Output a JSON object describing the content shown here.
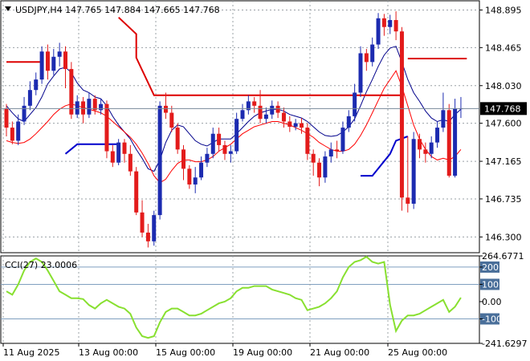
{
  "chart_data": {
    "type": "candlestick",
    "header": {
      "symbol": "USDJPY,H4",
      "open": "147.765",
      "high": "147.884",
      "low": "147.665",
      "close": "147.768"
    },
    "price_axis": {
      "ylim": [
        146.12,
        149.0
      ],
      "ticks": [
        "148.895",
        "148.465",
        "148.030",
        "147.600",
        "147.165",
        "146.735",
        "146.300"
      ],
      "current_label": "147.768",
      "current_value": 147.768
    },
    "x_labels": [
      "11 Aug 2025",
      "13 Aug 00:00",
      "15 Aug 00:00",
      "19 Aug 00:00",
      "21 Aug 00:00",
      "25 Aug 00:00"
    ],
    "candles": [
      [
        147.77,
        147.55,
        147.82,
        147.45
      ],
      [
        147.55,
        147.4,
        147.62,
        147.36
      ],
      [
        147.4,
        147.62,
        147.7,
        147.35
      ],
      [
        147.62,
        147.8,
        147.9,
        147.58
      ],
      [
        147.8,
        147.98,
        148.08,
        147.75
      ],
      [
        147.98,
        148.1,
        148.18,
        147.92
      ],
      [
        148.1,
        148.42,
        148.48,
        148.05
      ],
      [
        148.42,
        148.2,
        148.5,
        148.1
      ],
      [
        148.2,
        148.36,
        148.45,
        148.15
      ],
      [
        148.36,
        148.42,
        148.52,
        148.25
      ],
      [
        148.42,
        148.22,
        148.48,
        148.0
      ],
      [
        148.22,
        147.7,
        148.3,
        147.65
      ],
      [
        147.7,
        147.85,
        147.92,
        147.66
      ],
      [
        147.85,
        147.7,
        147.9,
        147.6
      ],
      [
        147.7,
        147.88,
        147.95,
        147.66
      ],
      [
        147.88,
        147.75,
        147.92,
        147.7
      ],
      [
        147.75,
        147.82,
        147.88,
        147.7
      ],
      [
        147.82,
        147.28,
        147.86,
        147.2
      ],
      [
        147.28,
        147.15,
        147.35,
        147.1
      ],
      [
        147.15,
        147.38,
        147.42,
        147.12
      ],
      [
        147.38,
        147.25,
        147.42,
        147.15
      ],
      [
        147.25,
        147.05,
        147.35,
        147.0
      ],
      [
        147.05,
        146.58,
        147.1,
        146.55
      ],
      [
        146.58,
        146.35,
        146.72,
        146.3
      ],
      [
        146.35,
        146.25,
        146.45,
        146.18
      ],
      [
        146.25,
        146.55,
        146.6,
        146.2
      ],
      [
        146.55,
        147.8,
        147.85,
        146.5
      ],
      [
        147.8,
        147.72,
        147.95,
        147.65
      ],
      [
        147.72,
        147.55,
        147.8,
        147.5
      ],
      [
        147.55,
        147.3,
        147.6,
        147.25
      ],
      [
        147.3,
        147.08,
        147.35,
        146.95
      ],
      [
        147.08,
        146.9,
        147.12,
        146.85
      ],
      [
        146.9,
        146.98,
        147.1,
        146.8
      ],
      [
        146.98,
        147.15,
        147.22,
        146.95
      ],
      [
        147.15,
        147.25,
        147.32,
        147.1
      ],
      [
        147.25,
        147.48,
        147.55,
        147.2
      ],
      [
        147.48,
        147.35,
        147.55,
        147.28
      ],
      [
        147.35,
        147.25,
        147.4,
        147.18
      ],
      [
        147.25,
        147.28,
        147.35,
        147.15
      ],
      [
        147.28,
        147.65,
        147.72,
        147.25
      ],
      [
        147.65,
        147.75,
        147.82,
        147.62
      ],
      [
        147.75,
        147.85,
        147.92,
        147.7
      ],
      [
        147.85,
        147.8,
        147.9,
        147.72
      ],
      [
        147.8,
        147.65,
        147.98,
        147.6
      ],
      [
        147.65,
        147.7,
        147.78,
        147.6
      ],
      [
        147.7,
        147.8,
        147.86,
        147.65
      ],
      [
        147.8,
        147.72,
        147.85,
        147.66
      ],
      [
        147.72,
        147.62,
        147.78,
        147.55
      ],
      [
        147.62,
        147.56,
        147.68,
        147.5
      ],
      [
        147.56,
        147.6,
        147.65,
        147.52
      ],
      [
        147.6,
        147.55,
        147.66,
        147.48
      ],
      [
        147.55,
        147.25,
        147.6,
        147.18
      ],
      [
        147.25,
        147.15,
        147.3,
        147.0
      ],
      [
        147.15,
        146.98,
        147.2,
        146.88
      ],
      [
        146.98,
        147.22,
        147.28,
        146.92
      ],
      [
        147.22,
        147.3,
        147.38,
        147.15
      ],
      [
        147.3,
        147.28,
        147.4,
        147.2
      ],
      [
        147.28,
        147.55,
        147.62,
        147.25
      ],
      [
        147.55,
        147.68,
        147.75,
        147.5
      ],
      [
        147.68,
        147.95,
        148.05,
        147.62
      ],
      [
        147.95,
        148.4,
        148.48,
        147.9
      ],
      [
        148.4,
        148.3,
        148.45,
        148.2
      ],
      [
        148.3,
        148.5,
        148.58,
        148.25
      ],
      [
        148.5,
        148.8,
        148.86,
        148.45
      ],
      [
        148.8,
        148.7,
        148.85,
        148.6
      ],
      [
        148.7,
        148.78,
        148.84,
        148.62
      ],
      [
        148.78,
        148.65,
        148.88,
        148.55
      ],
      [
        148.65,
        146.75,
        148.7,
        146.6
      ],
      [
        146.75,
        146.68,
        147.45,
        146.58
      ],
      [
        146.68,
        147.42,
        147.5,
        146.62
      ],
      [
        147.42,
        147.3,
        147.48,
        147.2
      ],
      [
        147.3,
        147.25,
        147.38,
        147.15
      ],
      [
        147.25,
        147.38,
        147.45,
        147.2
      ],
      [
        147.38,
        147.55,
        147.62,
        147.32
      ],
      [
        147.55,
        147.75,
        147.95,
        147.5
      ],
      [
        147.75,
        147.0,
        147.82,
        146.98
      ],
      [
        147.0,
        147.77,
        147.88,
        146.98
      ],
      [
        147.77,
        147.77,
        147.9,
        147.66
      ]
    ],
    "series": [
      {
        "color": "#00008b",
        "values": [
          147.8,
          147.72,
          147.65,
          147.62,
          147.7,
          147.78,
          147.9,
          148.05,
          148.14,
          148.22,
          148.24,
          148.18,
          148.06,
          147.98,
          147.95,
          147.9,
          147.88,
          147.8,
          147.68,
          147.58,
          147.5,
          147.42,
          147.3,
          147.2,
          147.08,
          147.05,
          147.18,
          147.38,
          147.52,
          147.58,
          147.56,
          147.48,
          147.4,
          147.36,
          147.34,
          147.38,
          147.42,
          147.42,
          147.42,
          147.48,
          147.55,
          147.62,
          147.68,
          147.72,
          147.74,
          147.76,
          147.76,
          147.74,
          147.7,
          147.68,
          147.66,
          147.62,
          147.56,
          147.5,
          147.46,
          147.45,
          147.46,
          147.5,
          147.56,
          147.65,
          147.8,
          147.96,
          148.1,
          148.25,
          148.38,
          148.46,
          148.48,
          148.3,
          148.1,
          147.95,
          147.85,
          147.74,
          147.66,
          147.62,
          147.64,
          147.62,
          147.7,
          147.76
        ]
      },
      {
        "color": "#ff0000",
        "values": [
          147.4,
          147.38,
          147.37,
          147.38,
          147.42,
          147.48,
          147.55,
          147.62,
          147.7,
          147.76,
          147.8,
          147.82,
          147.8,
          147.78,
          147.76,
          147.74,
          147.72,
          147.68,
          147.62,
          147.56,
          147.5,
          147.44,
          147.36,
          147.26,
          147.14,
          147.0,
          146.92,
          146.96,
          147.06,
          147.14,
          147.18,
          147.18,
          147.16,
          147.16,
          147.18,
          147.22,
          147.28,
          147.32,
          147.36,
          147.42,
          147.48,
          147.52,
          147.56,
          147.58,
          147.6,
          147.62,
          147.62,
          147.6,
          147.58,
          147.55,
          147.52,
          147.48,
          147.44,
          147.38,
          147.34,
          147.3,
          147.28,
          147.28,
          147.3,
          147.36,
          147.46,
          147.58,
          147.72,
          147.86,
          148.0,
          148.1,
          148.2,
          148.02,
          147.8,
          147.58,
          147.42,
          147.3,
          147.22,
          147.18,
          147.2,
          147.18,
          147.22,
          147.3
        ]
      }
    ],
    "step_lines": [
      {
        "color": "#dd0000",
        "points": [
          [
            0,
            148.3
          ],
          [
            6,
            148.3
          ]
        ]
      },
      {
        "color": "#dd0000",
        "points": [
          [
            19,
            148.81
          ],
          [
            22,
            148.62
          ],
          [
            22,
            148.35
          ],
          [
            25,
            147.92
          ],
          [
            26,
            147.92
          ],
          [
            67,
            147.92
          ]
        ]
      },
      {
        "color": "#dd0000",
        "points": [
          [
            68,
            148.34
          ],
          [
            78,
            148.34
          ]
        ]
      },
      {
        "color": "#0000cc",
        "points": [
          [
            10,
            147.25
          ],
          [
            12,
            147.36
          ],
          [
            19,
            147.36
          ]
        ]
      },
      {
        "color": "#0000cc",
        "points": [
          [
            60,
            147.0
          ],
          [
            62,
            147.0
          ],
          [
            65,
            147.25
          ],
          [
            66,
            147.4
          ],
          [
            68,
            147.45
          ]
        ]
      }
    ],
    "cci": {
      "label": "CCI(27) 23.0006",
      "ylim": [
        -241.6297,
        264.6771
      ],
      "ticks_right": [
        "264.6771",
        "200",
        "100",
        "0.00",
        "-100",
        "-241.6297"
      ],
      "levels": [
        200,
        100,
        -100
      ],
      "color": "#88e030",
      "values": [
        60,
        40,
        100,
        180,
        230,
        250,
        230,
        180,
        120,
        60,
        40,
        20,
        20,
        15,
        -20,
        -40,
        -10,
        10,
        -10,
        -30,
        -40,
        -70,
        -150,
        -200,
        -210,
        -200,
        -120,
        -60,
        -40,
        -40,
        -60,
        -80,
        -80,
        -70,
        -50,
        -30,
        -10,
        0,
        20,
        60,
        80,
        80,
        90,
        90,
        90,
        70,
        60,
        50,
        40,
        20,
        10,
        -50,
        -40,
        -30,
        -10,
        20,
        60,
        140,
        200,
        230,
        240,
        260,
        230,
        220,
        230,
        -20,
        -170,
        -110,
        -80,
        -80,
        -70,
        -50,
        -30,
        -10,
        10,
        -60,
        -30,
        23
      ]
    }
  }
}
